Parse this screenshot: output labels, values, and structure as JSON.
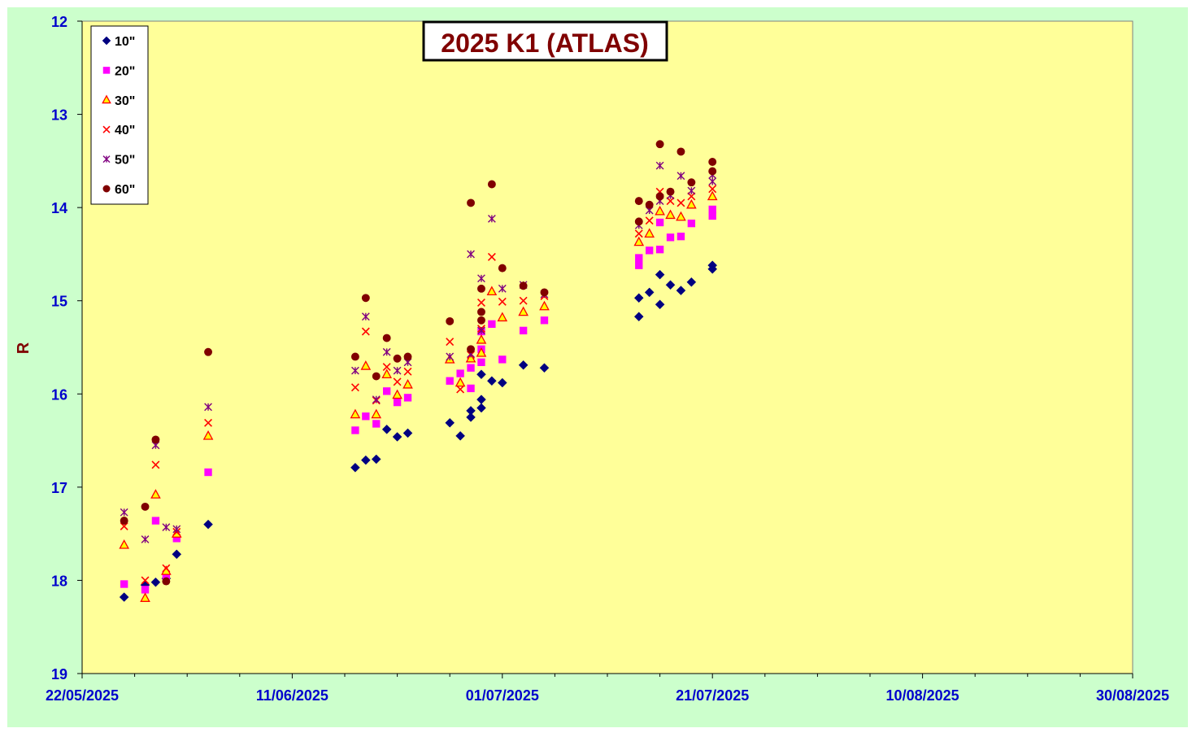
{
  "chart_data": {
    "type": "scatter",
    "title": "2025 K1 (ATLAS)",
    "ylabel": "R",
    "xlabel": "",
    "x_axis": {
      "type": "date",
      "min": "2025-05-22",
      "max": "2025-08-30",
      "major_ticks": [
        "2025-05-22",
        "2025-06-11",
        "2025-07-01",
        "2025-07-21",
        "2025-08-10",
        "2025-08-30"
      ],
      "tick_labels": [
        "22/05/2025",
        "11/06/2025",
        "01/07/2025",
        "21/07/2025",
        "10/08/2025",
        "30/08/2025"
      ],
      "minor_tick_every_days": 5
    },
    "y_axis": {
      "min": 12,
      "max": 19,
      "reversed": true,
      "ticks": [
        12,
        13,
        14,
        15,
        16,
        17,
        18,
        19
      ],
      "tick_labels": [
        "12",
        "13",
        "14",
        "15",
        "16",
        "17",
        "18",
        "19"
      ]
    },
    "grid": false,
    "legend": {
      "position": "top-left"
    },
    "colors": {
      "page_background": "#ccffcc",
      "plot_background": "#ffff99",
      "axis_text": "#0000cc",
      "ylabel": "#800000",
      "title_text": "#800000"
    },
    "series": [
      {
        "name": "10\"",
        "marker": "diamond",
        "color": "#000080",
        "points": [
          [
            "2025-05-26",
            18.18
          ],
          [
            "2025-05-28",
            18.05
          ],
          [
            "2025-05-29",
            18.02
          ],
          [
            "2025-05-30",
            17.98
          ],
          [
            "2025-05-31",
            17.72
          ],
          [
            "2025-06-03",
            17.4
          ],
          [
            "2025-06-17",
            16.79
          ],
          [
            "2025-06-18",
            16.71
          ],
          [
            "2025-06-19",
            16.7
          ],
          [
            "2025-06-20",
            16.38
          ],
          [
            "2025-06-21",
            16.46
          ],
          [
            "2025-06-22",
            16.42
          ],
          [
            "2025-06-26",
            16.31
          ],
          [
            "2025-06-27",
            16.45
          ],
          [
            "2025-06-28",
            16.18
          ],
          [
            "2025-06-28",
            16.25
          ],
          [
            "2025-06-29",
            16.06
          ],
          [
            "2025-06-29",
            16.15
          ],
          [
            "2025-06-29",
            15.79
          ],
          [
            "2025-06-30",
            15.86
          ],
          [
            "2025-07-01",
            15.88
          ],
          [
            "2025-07-03",
            15.69
          ],
          [
            "2025-07-05",
            15.72
          ],
          [
            "2025-07-14",
            15.17
          ],
          [
            "2025-07-14",
            14.97
          ],
          [
            "2025-07-15",
            14.91
          ],
          [
            "2025-07-16",
            15.04
          ],
          [
            "2025-07-16",
            14.72
          ],
          [
            "2025-07-17",
            14.83
          ],
          [
            "2025-07-18",
            14.89
          ],
          [
            "2025-07-19",
            14.8
          ],
          [
            "2025-07-21",
            14.62
          ],
          [
            "2025-07-21",
            14.66
          ]
        ]
      },
      {
        "name": "20\"",
        "marker": "square",
        "color": "#ff00ff",
        "points": [
          [
            "2025-05-26",
            18.04
          ],
          [
            "2025-05-28",
            18.1
          ],
          [
            "2025-05-29",
            17.36
          ],
          [
            "2025-05-30",
            17.95
          ],
          [
            "2025-05-31",
            17.55
          ],
          [
            "2025-06-03",
            16.84
          ],
          [
            "2025-06-17",
            16.39
          ],
          [
            "2025-06-18",
            16.24
          ],
          [
            "2025-06-19",
            16.32
          ],
          [
            "2025-06-20",
            15.97
          ],
          [
            "2025-06-21",
            16.09
          ],
          [
            "2025-06-22",
            16.04
          ],
          [
            "2025-06-26",
            15.86
          ],
          [
            "2025-06-27",
            15.78
          ],
          [
            "2025-06-28",
            15.72
          ],
          [
            "2025-06-28",
            15.94
          ],
          [
            "2025-06-29",
            15.52
          ],
          [
            "2025-06-29",
            15.66
          ],
          [
            "2025-06-29",
            15.33
          ],
          [
            "2025-06-30",
            15.25
          ],
          [
            "2025-07-01",
            15.63
          ],
          [
            "2025-07-03",
            15.32
          ],
          [
            "2025-07-05",
            15.21
          ],
          [
            "2025-07-14",
            14.62
          ],
          [
            "2025-07-14",
            14.54
          ],
          [
            "2025-07-15",
            14.46
          ],
          [
            "2025-07-16",
            14.45
          ],
          [
            "2025-07-16",
            14.16
          ],
          [
            "2025-07-17",
            14.32
          ],
          [
            "2025-07-18",
            14.31
          ],
          [
            "2025-07-19",
            14.17
          ],
          [
            "2025-07-21",
            14.09
          ],
          [
            "2025-07-21",
            14.02
          ]
        ]
      },
      {
        "name": "30\"",
        "marker": "triangle",
        "color": "#ff0000",
        "fill": "#ffff00",
        "points": [
          [
            "2025-05-26",
            17.62
          ],
          [
            "2025-05-28",
            18.19
          ],
          [
            "2025-05-29",
            17.08
          ],
          [
            "2025-05-30",
            17.9
          ],
          [
            "2025-05-31",
            17.5
          ],
          [
            "2025-06-03",
            16.45
          ],
          [
            "2025-06-17",
            16.22
          ],
          [
            "2025-06-18",
            15.7
          ],
          [
            "2025-06-19",
            16.22
          ],
          [
            "2025-06-20",
            15.79
          ],
          [
            "2025-06-21",
            16.01
          ],
          [
            "2025-06-22",
            15.9
          ],
          [
            "2025-06-26",
            15.63
          ],
          [
            "2025-06-27",
            15.88
          ],
          [
            "2025-06-28",
            15.62
          ],
          [
            "2025-06-29",
            15.42
          ],
          [
            "2025-06-29",
            15.56
          ],
          [
            "2025-06-30",
            14.9
          ],
          [
            "2025-07-01",
            15.18
          ],
          [
            "2025-07-03",
            15.12
          ],
          [
            "2025-07-05",
            15.06
          ],
          [
            "2025-07-14",
            14.37
          ],
          [
            "2025-07-15",
            14.28
          ],
          [
            "2025-07-16",
            14.04
          ],
          [
            "2025-07-17",
            14.08
          ],
          [
            "2025-07-18",
            14.1
          ],
          [
            "2025-07-19",
            13.97
          ],
          [
            "2025-07-21",
            13.88
          ]
        ]
      },
      {
        "name": "40\"",
        "marker": "x",
        "color": "#ff0000",
        "points": [
          [
            "2025-05-26",
            17.42
          ],
          [
            "2025-05-28",
            18.0
          ],
          [
            "2025-05-29",
            16.76
          ],
          [
            "2025-05-30",
            17.87
          ],
          [
            "2025-05-31",
            17.48
          ],
          [
            "2025-06-03",
            16.31
          ],
          [
            "2025-06-17",
            15.93
          ],
          [
            "2025-06-18",
            15.33
          ],
          [
            "2025-06-19",
            16.07
          ],
          [
            "2025-06-20",
            15.71
          ],
          [
            "2025-06-21",
            15.87
          ],
          [
            "2025-06-22",
            15.76
          ],
          [
            "2025-06-26",
            15.44
          ],
          [
            "2025-06-27",
            15.95
          ],
          [
            "2025-06-28",
            15.58
          ],
          [
            "2025-06-29",
            15.02
          ],
          [
            "2025-06-29",
            15.3
          ],
          [
            "2025-06-30",
            14.53
          ],
          [
            "2025-07-01",
            15.01
          ],
          [
            "2025-07-03",
            15.0
          ],
          [
            "2025-07-05",
            14.95
          ],
          [
            "2025-07-14",
            14.28
          ],
          [
            "2025-07-15",
            14.14
          ],
          [
            "2025-07-16",
            13.83
          ],
          [
            "2025-07-17",
            13.93
          ],
          [
            "2025-07-18",
            13.95
          ],
          [
            "2025-07-19",
            13.88
          ],
          [
            "2025-07-21",
            13.8
          ]
        ]
      },
      {
        "name": "50\"",
        "marker": "star",
        "color": "#800080",
        "points": [
          [
            "2025-05-26",
            17.27
          ],
          [
            "2025-05-28",
            17.56
          ],
          [
            "2025-05-29",
            16.55
          ],
          [
            "2025-05-30",
            17.43
          ],
          [
            "2025-05-31",
            17.45
          ],
          [
            "2025-06-03",
            16.14
          ],
          [
            "2025-06-17",
            15.75
          ],
          [
            "2025-06-18",
            15.17
          ],
          [
            "2025-06-19",
            16.06
          ],
          [
            "2025-06-20",
            15.55
          ],
          [
            "2025-06-21",
            15.75
          ],
          [
            "2025-06-22",
            15.66
          ],
          [
            "2025-06-26",
            15.6
          ],
          [
            "2025-06-28",
            14.5
          ],
          [
            "2025-06-28",
            15.57
          ],
          [
            "2025-06-29",
            14.76
          ],
          [
            "2025-06-29",
            15.32
          ],
          [
            "2025-06-30",
            14.12
          ],
          [
            "2025-07-01",
            14.87
          ],
          [
            "2025-07-03",
            14.83
          ],
          [
            "2025-07-05",
            14.93
          ],
          [
            "2025-07-14",
            14.19
          ],
          [
            "2025-07-15",
            14.03
          ],
          [
            "2025-07-16",
            13.55
          ],
          [
            "2025-07-16",
            13.93
          ],
          [
            "2025-07-17",
            13.87
          ],
          [
            "2025-07-18",
            13.66
          ],
          [
            "2025-07-19",
            13.82
          ],
          [
            "2025-07-21",
            13.65
          ],
          [
            "2025-07-21",
            13.72
          ]
        ]
      },
      {
        "name": "60\"",
        "marker": "circle",
        "color": "#800000",
        "points": [
          [
            "2025-05-26",
            17.36
          ],
          [
            "2025-05-28",
            17.21
          ],
          [
            "2025-05-29",
            16.49
          ],
          [
            "2025-05-30",
            18.01
          ],
          [
            "2025-06-03",
            15.55
          ],
          [
            "2025-06-17",
            15.6
          ],
          [
            "2025-06-18",
            14.97
          ],
          [
            "2025-06-19",
            15.81
          ],
          [
            "2025-06-20",
            15.4
          ],
          [
            "2025-06-21",
            15.62
          ],
          [
            "2025-06-22",
            15.6
          ],
          [
            "2025-06-26",
            15.22
          ],
          [
            "2025-06-28",
            13.95
          ],
          [
            "2025-06-28",
            15.52
          ],
          [
            "2025-06-29",
            14.87
          ],
          [
            "2025-06-29",
            15.12
          ],
          [
            "2025-06-29",
            15.21
          ],
          [
            "2025-06-30",
            13.75
          ],
          [
            "2025-07-01",
            14.65
          ],
          [
            "2025-07-03",
            14.84
          ],
          [
            "2025-07-05",
            14.91
          ],
          [
            "2025-07-14",
            13.93
          ],
          [
            "2025-07-14",
            14.15
          ],
          [
            "2025-07-15",
            13.97
          ],
          [
            "2025-07-16",
            13.32
          ],
          [
            "2025-07-16",
            13.88
          ],
          [
            "2025-07-17",
            13.83
          ],
          [
            "2025-07-18",
            13.4
          ],
          [
            "2025-07-19",
            13.73
          ],
          [
            "2025-07-21",
            13.51
          ],
          [
            "2025-07-21",
            13.61
          ]
        ]
      }
    ]
  }
}
